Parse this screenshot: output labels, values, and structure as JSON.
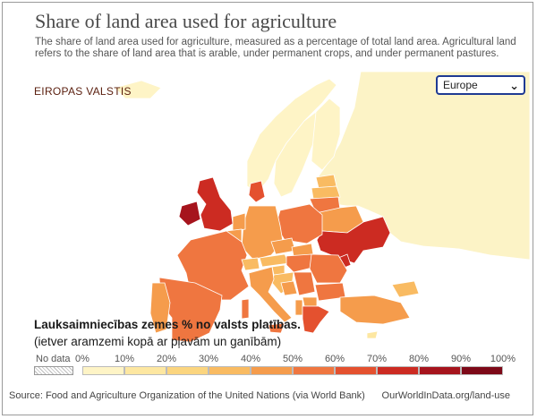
{
  "title": "Share of land area used for agriculture",
  "subtitle": "The share of land area used for agriculture, measured as a percentage of total land area. Agricultural land refers to the share of land area that is arable, under permanent crops, and under permanent pastures.",
  "map_label": "EIROPAS VALSTIS",
  "region_select": {
    "selected": "Europe",
    "options": [
      "Europe"
    ]
  },
  "legend": {
    "title": "Lauksaimniecības zemes % no valsts platības.",
    "note": "(ietver aramzemi kopā ar pļavām un ganībām)",
    "no_data_label": "No data",
    "ticks": [
      "0%",
      "10%",
      "20%",
      "30%",
      "40%",
      "50%",
      "60%",
      "70%",
      "80%",
      "90%",
      "100%"
    ],
    "colors": [
      "#fef4c6",
      "#fde7a1",
      "#fbd57f",
      "#f9bb62",
      "#f59c4c",
      "#ef7640",
      "#e4512f",
      "#cc2b22",
      "#a6141d",
      "#7d0918"
    ],
    "no_data_color": "#e8e8e8",
    "outside_color": "#fcf3c6"
  },
  "footer": {
    "source": "Source: Food and Agriculture Organization of the United Nations (via World Bank)",
    "url": "OurWorldInData.org/land-use"
  }
}
